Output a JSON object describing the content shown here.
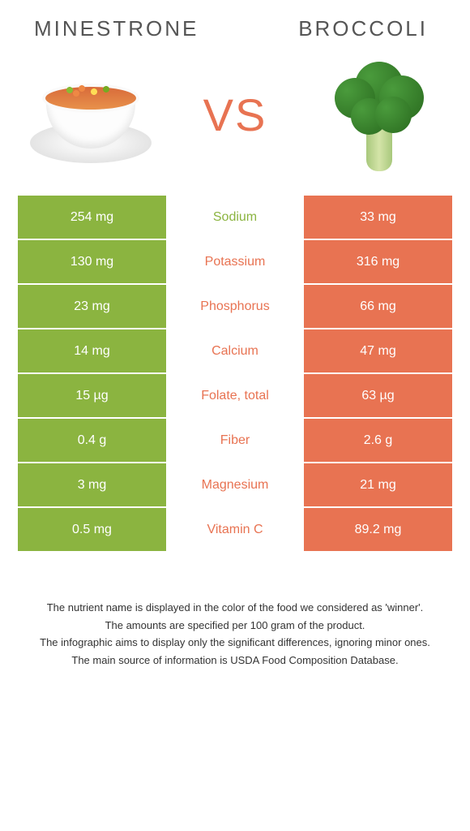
{
  "left_food": "Minestrone",
  "right_food": "Broccoli",
  "vs_text": "VS",
  "colors": {
    "left": "#8bb440",
    "right": "#e87352"
  },
  "rows": [
    {
      "nutrient": "Sodium",
      "left": "254 mg",
      "right": "33 mg",
      "winner": "left"
    },
    {
      "nutrient": "Potassium",
      "left": "130 mg",
      "right": "316 mg",
      "winner": "right"
    },
    {
      "nutrient": "Phosphorus",
      "left": "23 mg",
      "right": "66 mg",
      "winner": "right"
    },
    {
      "nutrient": "Calcium",
      "left": "14 mg",
      "right": "47 mg",
      "winner": "right"
    },
    {
      "nutrient": "Folate, total",
      "left": "15 µg",
      "right": "63 µg",
      "winner": "right"
    },
    {
      "nutrient": "Fiber",
      "left": "0.4 g",
      "right": "2.6 g",
      "winner": "right"
    },
    {
      "nutrient": "Magnesium",
      "left": "3 mg",
      "right": "21 mg",
      "winner": "right"
    },
    {
      "nutrient": "Vitamin C",
      "left": "0.5 mg",
      "right": "89.2 mg",
      "winner": "right"
    }
  ],
  "footer": [
    "The nutrient name is displayed in the color of the food we considered as 'winner'.",
    "The amounts are specified per 100 gram of the product.",
    "The infographic aims to display only the significant differences, ignoring minor ones.",
    "The main source of information is USDA Food Composition Database."
  ]
}
